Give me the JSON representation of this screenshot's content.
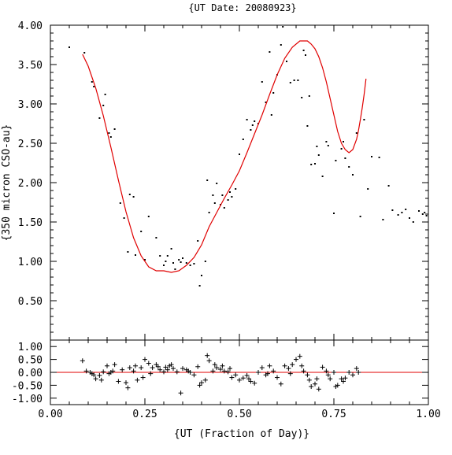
{
  "chart_data": [
    {
      "type": "scatter",
      "panel": "main",
      "title": "{UT Date: 20080923}",
      "ylabel": "{350 micron CSO-au}",
      "xlim": [
        0.0,
        1.0
      ],
      "ylim": [
        0.0,
        4.0
      ],
      "yticks": [
        "0.50",
        "1.00",
        "1.50",
        "2.00",
        "2.50",
        "3.00",
        "3.50",
        "4.00"
      ],
      "series": [
        {
          "kind": "points",
          "x": [
            0.05,
            0.09,
            0.11,
            0.115,
            0.13,
            0.14,
            0.145,
            0.155,
            0.16,
            0.17,
            0.185,
            0.195,
            0.205,
            0.21,
            0.22,
            0.225,
            0.24,
            0.25,
            0.26,
            0.28,
            0.29,
            0.3,
            0.305,
            0.31,
            0.32,
            0.325,
            0.33,
            0.34,
            0.345,
            0.35,
            0.36,
            0.37,
            0.38,
            0.39,
            0.395,
            0.4,
            0.41,
            0.415,
            0.42,
            0.43,
            0.435,
            0.44,
            0.45,
            0.455,
            0.46,
            0.47,
            0.475,
            0.48,
            0.49,
            0.5,
            0.51,
            0.52,
            0.53,
            0.535,
            0.54,
            0.55,
            0.56,
            0.57,
            0.58,
            0.585,
            0.59,
            0.6,
            0.61,
            0.615,
            0.625,
            0.635,
            0.645,
            0.655,
            0.665,
            0.67,
            0.675,
            0.68,
            0.685,
            0.69,
            0.7,
            0.705,
            0.71,
            0.72,
            0.73,
            0.735,
            0.75,
            0.755,
            0.77,
            0.775,
            0.78,
            0.79,
            0.8,
            0.81,
            0.82,
            0.83,
            0.84,
            0.85,
            0.87,
            0.88,
            0.895,
            0.905,
            0.92,
            0.93,
            0.94,
            0.95,
            0.96,
            0.975,
            0.985,
            0.99,
            0.995
          ],
          "y": [
            3.72,
            3.65,
            3.28,
            3.22,
            2.82,
            2.98,
            3.12,
            2.63,
            2.58,
            2.68,
            1.74,
            1.55,
            1.12,
            1.85,
            1.82,
            1.08,
            1.38,
            1.02,
            1.57,
            1.3,
            1.07,
            0.95,
            1.0,
            1.07,
            1.16,
            0.98,
            0.9,
            1.02,
            0.99,
            1.04,
            0.98,
            0.95,
            0.97,
            1.26,
            0.69,
            0.82,
            1.0,
            2.03,
            1.62,
            1.84,
            1.74,
            1.99,
            1.72,
            1.84,
            1.68,
            1.78,
            1.88,
            1.82,
            1.92,
            2.36,
            2.55,
            2.8,
            2.67,
            2.73,
            2.78,
            2.75,
            3.28,
            3.02,
            3.66,
            2.86,
            3.14,
            3.37,
            3.75,
            3.98,
            3.54,
            3.27,
            3.3,
            3.3,
            3.08,
            3.68,
            3.62,
            2.72,
            3.1,
            2.23,
            2.24,
            2.46,
            2.35,
            2.08,
            2.52,
            2.47,
            1.61,
            2.28,
            2.43,
            2.52,
            2.31,
            2.2,
            2.1,
            2.63,
            1.57,
            2.8,
            1.92,
            2.33,
            2.32,
            1.53,
            1.96,
            1.65,
            1.59,
            1.62,
            1.66,
            1.55,
            1.5,
            1.64,
            1.6,
            1.62,
            1.58
          ]
        },
        {
          "kind": "fit",
          "x": [
            0.085,
            0.1,
            0.12,
            0.14,
            0.16,
            0.18,
            0.2,
            0.22,
            0.24,
            0.26,
            0.28,
            0.3,
            0.32,
            0.34,
            0.36,
            0.38,
            0.4,
            0.42,
            0.44,
            0.46,
            0.48,
            0.5,
            0.52,
            0.54,
            0.56,
            0.58,
            0.6,
            0.62,
            0.64,
            0.66,
            0.68,
            0.69,
            0.7,
            0.71,
            0.72,
            0.73,
            0.74,
            0.75,
            0.76,
            0.77,
            0.78,
            0.79,
            0.8,
            0.81,
            0.815,
            0.82,
            0.825,
            0.83,
            0.835
          ],
          "y": [
            3.63,
            3.48,
            3.2,
            2.85,
            2.45,
            2.03,
            1.63,
            1.3,
            1.07,
            0.93,
            0.88,
            0.88,
            0.86,
            0.88,
            0.95,
            1.05,
            1.21,
            1.44,
            1.62,
            1.8,
            1.97,
            2.15,
            2.38,
            2.62,
            2.86,
            3.12,
            3.37,
            3.58,
            3.72,
            3.8,
            3.8,
            3.76,
            3.7,
            3.6,
            3.46,
            3.28,
            3.07,
            2.86,
            2.65,
            2.5,
            2.42,
            2.38,
            2.42,
            2.55,
            2.66,
            2.8,
            2.95,
            3.12,
            3.32
          ]
        }
      ]
    },
    {
      "type": "scatter",
      "panel": "residuals",
      "xlabel": "{UT (Fraction of Day)}",
      "xlim": [
        0.0,
        1.0
      ],
      "ylim": [
        -1.25,
        1.25
      ],
      "xticks": [
        "0.00",
        "0.25",
        "0.50",
        "0.75",
        "1.00"
      ],
      "yticks": [
        "-1.00",
        "-0.50",
        "0.00",
        "0.50",
        "1.00"
      ],
      "zero_line": 0.0,
      "series": [
        {
          "kind": "residuals",
          "x": [
            0.085,
            0.095,
            0.105,
            0.11,
            0.115,
            0.12,
            0.13,
            0.135,
            0.14,
            0.15,
            0.155,
            0.16,
            0.165,
            0.17,
            0.18,
            0.19,
            0.2,
            0.205,
            0.21,
            0.22,
            0.225,
            0.23,
            0.24,
            0.245,
            0.25,
            0.26,
            0.265,
            0.27,
            0.28,
            0.285,
            0.29,
            0.3,
            0.305,
            0.31,
            0.315,
            0.32,
            0.325,
            0.335,
            0.345,
            0.35,
            0.36,
            0.365,
            0.37,
            0.38,
            0.39,
            0.395,
            0.4,
            0.41,
            0.415,
            0.42,
            0.43,
            0.435,
            0.44,
            0.45,
            0.455,
            0.46,
            0.47,
            0.475,
            0.48,
            0.49,
            0.5,
            0.51,
            0.52,
            0.525,
            0.53,
            0.54,
            0.55,
            0.56,
            0.57,
            0.575,
            0.58,
            0.59,
            0.6,
            0.61,
            0.62,
            0.63,
            0.635,
            0.64,
            0.65,
            0.66,
            0.665,
            0.67,
            0.68,
            0.685,
            0.69,
            0.7,
            0.705,
            0.71,
            0.72,
            0.73,
            0.735,
            0.74,
            0.75,
            0.755,
            0.76,
            0.77,
            0.775,
            0.78,
            0.79,
            0.8,
            0.81,
            0.815
          ],
          "y": [
            0.45,
            0.05,
            0.0,
            -0.05,
            -0.1,
            -0.25,
            -0.12,
            -0.3,
            0.02,
            0.25,
            -0.05,
            0.0,
            0.05,
            0.3,
            -0.35,
            0.1,
            -0.4,
            -0.6,
            0.18,
            0.05,
            0.25,
            -0.3,
            0.18,
            -0.2,
            0.5,
            0.35,
            -0.05,
            0.18,
            0.3,
            0.22,
            0.1,
            0.02,
            0.2,
            0.1,
            0.25,
            0.3,
            0.15,
            0.02,
            -0.8,
            0.15,
            0.1,
            0.05,
            0.0,
            -0.1,
            0.22,
            -0.5,
            -0.4,
            -0.3,
            0.65,
            0.45,
            0.05,
            0.3,
            0.18,
            0.12,
            0.25,
            0.05,
            0.02,
            0.15,
            -0.2,
            -0.1,
            -0.3,
            -0.22,
            -0.12,
            -0.25,
            -0.35,
            -0.42,
            0.0,
            0.18,
            -0.1,
            -0.05,
            0.25,
            0.05,
            -0.2,
            -0.45,
            0.25,
            0.15,
            -0.05,
            0.3,
            0.5,
            0.62,
            0.25,
            0.05,
            -0.1,
            -0.3,
            -0.55,
            -0.45,
            -0.25,
            -0.65,
            0.2,
            0.05,
            -0.1,
            -0.25,
            0.0,
            -0.55,
            -0.5,
            -0.25,
            -0.35,
            -0.22,
            0.0,
            -0.1,
            0.15,
            0.0
          ]
        }
      ]
    }
  ]
}
